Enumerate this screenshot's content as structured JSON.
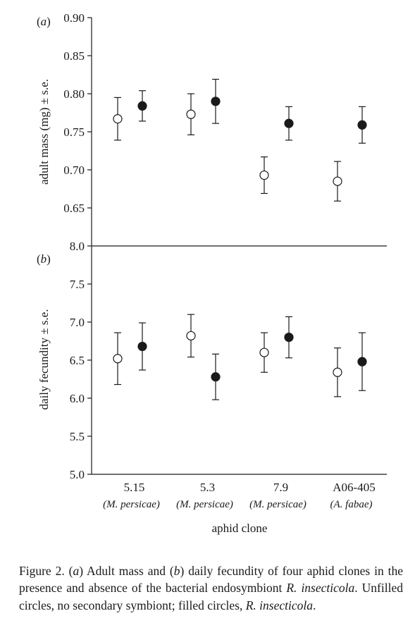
{
  "chart_data": [
    {
      "type": "scatter",
      "panel_label": "a",
      "ylabel": "adult mass (mg) ± s.e.",
      "ylim": [
        0.6,
        0.9
      ],
      "yticks": [
        0.65,
        0.7,
        0.75,
        0.8,
        0.85,
        0.9
      ],
      "ytick_labels": [
        "0.65",
        "0.70",
        "0.75",
        "0.80",
        "0.85",
        "0.90"
      ],
      "categories": [
        "5.15",
        "5.3",
        "7.9",
        "A06-405"
      ],
      "series": [
        {
          "marker": "open",
          "values": [
            0.767,
            0.773,
            0.693,
            0.685
          ],
          "se": [
            0.028,
            0.027,
            0.024,
            0.026
          ]
        },
        {
          "marker": "filled",
          "values": [
            0.784,
            0.79,
            0.761,
            0.759
          ],
          "se": [
            0.02,
            0.029,
            0.022,
            0.024
          ]
        }
      ]
    },
    {
      "type": "scatter",
      "panel_label": "b",
      "ylabel": "daily fecundity ± s.e.",
      "ylim": [
        5.0,
        8.0
      ],
      "yticks": [
        5.0,
        5.5,
        6.0,
        6.5,
        7.0,
        7.5,
        8.0
      ],
      "ytick_labels": [
        "5.0",
        "5.5",
        "6.0",
        "6.5",
        "7.0",
        "7.5",
        "8.0"
      ],
      "xlabel": "aphid clone",
      "categories": [
        "5.15",
        "5.3",
        "7.9",
        "A06-405"
      ],
      "category_sublabels": [
        "(M. persicae)",
        "(M. persicae)",
        "(M. persicae)",
        "(A. fabae)"
      ],
      "series": [
        {
          "marker": "open",
          "values": [
            6.52,
            6.82,
            6.6,
            6.34
          ],
          "se": [
            0.34,
            0.28,
            0.26,
            0.32
          ]
        },
        {
          "marker": "filled",
          "values": [
            6.68,
            6.28,
            6.8,
            6.48
          ],
          "se": [
            0.31,
            0.3,
            0.27,
            0.38
          ]
        }
      ]
    }
  ],
  "caption": {
    "prefix": "Figure 2. (",
    "a": "a",
    "mid1": ") Adult mass and (",
    "b": "b",
    "mid2": ") daily fecundity of four aphid clones in the presence and absence of the bacterial endosymbiont ",
    "species1": "R. insecticola",
    "mid3": ". Unfilled circles, no secondary symbiont; filled circles, ",
    "species2": "R. insecticola",
    "end": "."
  },
  "colors": {
    "ink": "#1a1a1a",
    "background": "#ffffff"
  }
}
